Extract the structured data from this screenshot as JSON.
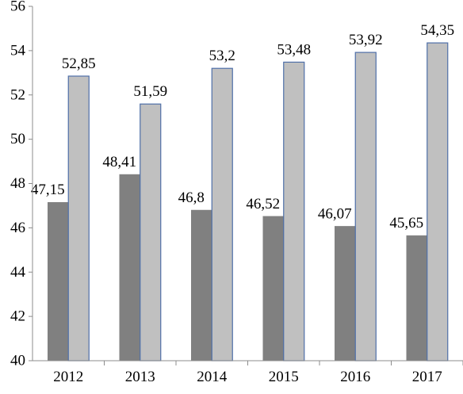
{
  "chart_data": {
    "type": "bar",
    "title": "",
    "xlabel": "",
    "ylabel": "",
    "ylim": [
      40,
      56
    ],
    "yticks": [
      40,
      42,
      44,
      46,
      48,
      50,
      52,
      54,
      56
    ],
    "grid": false,
    "legend": "none",
    "categories": [
      "2012",
      "2013",
      "2014",
      "2015",
      "2016",
      "2017"
    ],
    "series": [
      {
        "values": [
          47.15,
          48.41,
          46.8,
          46.52,
          46.07,
          45.65
        ],
        "labels": [
          "47,15",
          "48,41",
          "46,8",
          "46,52",
          "46,07",
          "45,65"
        ],
        "color": "#808080",
        "stroke": "#808080"
      },
      {
        "values": [
          52.85,
          51.59,
          53.2,
          53.48,
          53.92,
          54.35
        ],
        "labels": [
          "52,85",
          "51,59",
          "53,2",
          "53,48",
          "53,92",
          "54,35"
        ],
        "color": "#c0c0c0",
        "stroke": "#4f6fa8"
      }
    ]
  }
}
